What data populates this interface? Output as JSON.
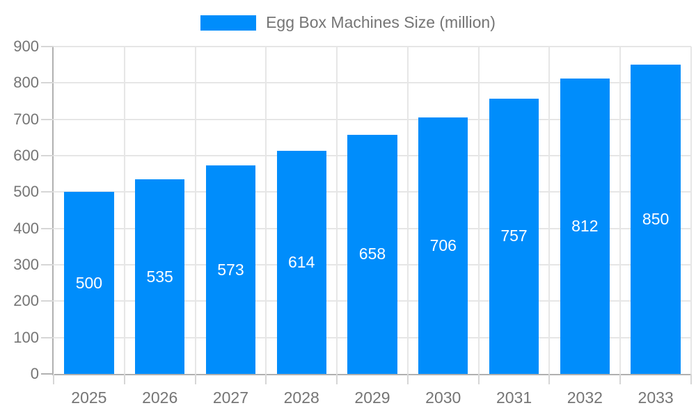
{
  "legend": {
    "label": "Egg Box Machines Size (million)"
  },
  "chart_data": {
    "type": "bar",
    "title": "Egg Box Machines Size (million)",
    "categories": [
      "2025",
      "2026",
      "2027",
      "2028",
      "2029",
      "2030",
      "2031",
      "2032",
      "2033"
    ],
    "values": [
      500,
      535,
      573,
      614,
      658,
      706,
      757,
      812,
      850
    ],
    "xlabel": "",
    "ylabel": "",
    "ylim": [
      0,
      900
    ],
    "ytick_step": 100,
    "yticks": [
      0,
      100,
      200,
      300,
      400,
      500,
      600,
      700,
      800,
      900
    ],
    "grid": true,
    "legend_position": "top",
    "value_labels": "inside-center"
  },
  "colors": {
    "bar": "#008DFB",
    "bar_value_text": "#ffffff",
    "axis_text": "#757575",
    "grid_line": "#e6e6e6",
    "axis_line": "#b0b0b0",
    "tick_line": "#d6d6d6"
  }
}
